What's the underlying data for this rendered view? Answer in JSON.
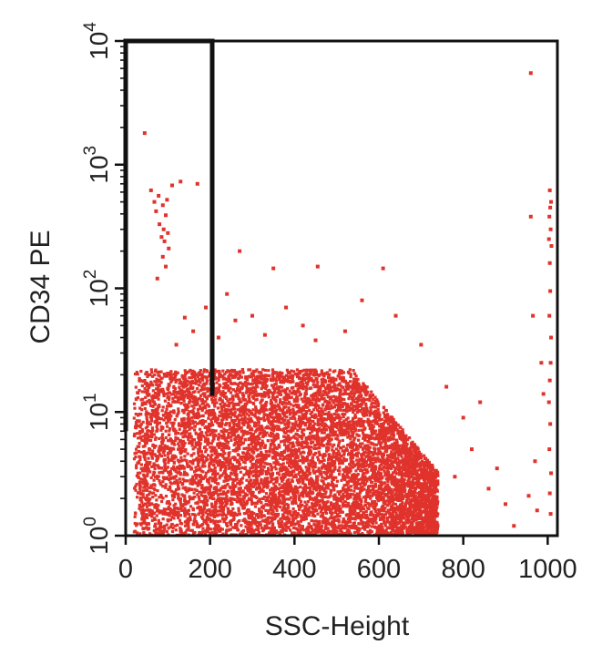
{
  "chart_data": {
    "type": "scatter",
    "title": "",
    "xlabel": "SSC-Height",
    "ylabel": "CD34 PE",
    "x_scale": "linear",
    "y_scale": "log",
    "xlim": [
      0,
      1023
    ],
    "ylim": [
      1,
      10000
    ],
    "x_ticks": [
      {
        "value": 0,
        "label": "0"
      },
      {
        "value": 200,
        "label": "200"
      },
      {
        "value": 400,
        "label": "400"
      },
      {
        "value": 600,
        "label": "600"
      },
      {
        "value": 800,
        "label": "800"
      },
      {
        "value": 1000,
        "label": "1000"
      }
    ],
    "y_ticks": [
      {
        "value": 1,
        "base": "10",
        "exp": "0"
      },
      {
        "value": 10,
        "base": "10",
        "exp": "1"
      },
      {
        "value": 100,
        "base": "10",
        "exp": "2"
      },
      {
        "value": 1000,
        "base": "10",
        "exp": "3"
      },
      {
        "value": 10000,
        "base": "10",
        "exp": "4"
      }
    ],
    "grid": false,
    "legend": "none",
    "point_color": "#e0332c",
    "gate_color": "#111111",
    "gate": {
      "vertices": [
        [
          0,
          7
        ],
        [
          0,
          10000
        ],
        [
          205,
          10000
        ],
        [
          205,
          13.5
        ]
      ]
    },
    "dense_population": {
      "description_free": true,
      "x_range": [
        20,
        740
      ],
      "y_range": [
        1,
        22
      ],
      "point_count": 9000
    },
    "points": [
      [
        45,
        1800
      ],
      [
        60,
        620
      ],
      [
        68,
        500
      ],
      [
        72,
        420
      ],
      [
        78,
        560
      ],
      [
        80,
        330
      ],
      [
        85,
        260
      ],
      [
        88,
        470
      ],
      [
        90,
        300
      ],
      [
        92,
        240
      ],
      [
        95,
        390
      ],
      [
        98,
        520
      ],
      [
        100,
        280
      ],
      [
        102,
        210
      ],
      [
        110,
        680
      ],
      [
        130,
        730
      ],
      [
        170,
        700
      ],
      [
        88,
        180
      ],
      [
        95,
        150
      ],
      [
        75,
        120
      ],
      [
        270,
        200
      ],
      [
        350,
        145
      ],
      [
        455,
        150
      ],
      [
        610,
        145
      ],
      [
        960,
        5500
      ],
      [
        1005,
        620
      ],
      [
        1008,
        500
      ],
      [
        1006,
        450
      ],
      [
        1004,
        380
      ],
      [
        1007,
        300
      ],
      [
        1003,
        250
      ],
      [
        1009,
        220
      ],
      [
        1005,
        160
      ],
      [
        1006,
        95
      ],
      [
        1004,
        60
      ],
      [
        1008,
        40
      ],
      [
        1007,
        25
      ],
      [
        1005,
        18
      ],
      [
        1003,
        12
      ],
      [
        1006,
        8
      ],
      [
        1004,
        5
      ],
      [
        1008,
        3.2
      ],
      [
        1005,
        2.2
      ],
      [
        1007,
        1.5
      ],
      [
        960,
        380
      ],
      [
        965,
        60
      ],
      [
        985,
        25
      ],
      [
        990,
        14
      ],
      [
        970,
        4
      ],
      [
        955,
        2.1
      ],
      [
        975,
        1.6
      ],
      [
        880,
        3.5
      ],
      [
        900,
        1.8
      ],
      [
        860,
        2.4
      ],
      [
        920,
        1.2
      ],
      [
        780,
        3.0
      ],
      [
        820,
        5.0
      ],
      [
        800,
        9.0
      ],
      [
        840,
        12
      ],
      [
        760,
        16
      ],
      [
        300,
        60
      ],
      [
        240,
        90
      ],
      [
        260,
        55
      ],
      [
        380,
        70
      ],
      [
        420,
        50
      ],
      [
        520,
        45
      ],
      [
        560,
        80
      ],
      [
        640,
        60
      ],
      [
        700,
        35
      ],
      [
        450,
        38
      ],
      [
        330,
        42
      ],
      [
        190,
        70
      ],
      [
        160,
        45
      ],
      [
        140,
        58
      ],
      [
        120,
        35
      ],
      [
        220,
        40
      ]
    ]
  }
}
